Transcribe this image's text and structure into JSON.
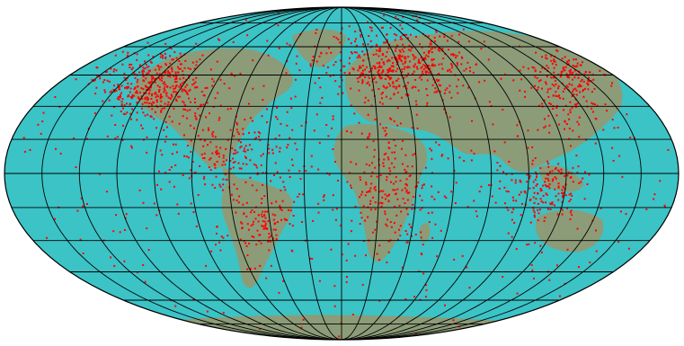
{
  "map": {
    "projection": "mollweide",
    "colors": {
      "ocean": "#3cc3c6",
      "land": "#8c9c78",
      "graticule": "#000000",
      "points": "#ff0000",
      "background": "#ffffff"
    },
    "graticule": {
      "meridian_step_deg": 20,
      "parallel_step_deg": 15
    },
    "points_description_hidden": true
  }
}
